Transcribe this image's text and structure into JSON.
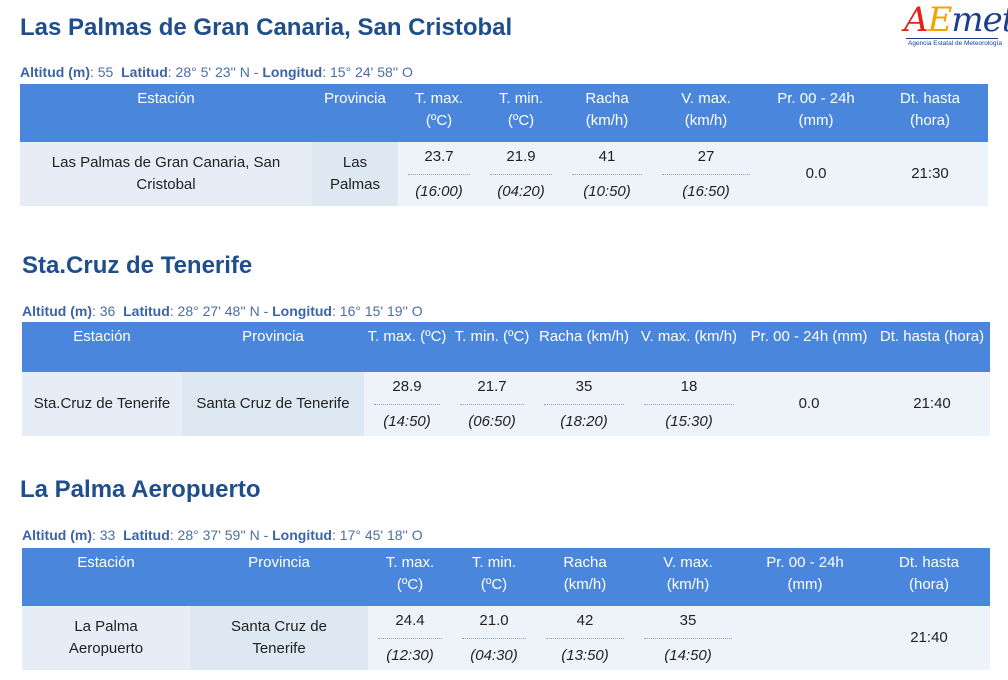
{
  "logo": {
    "a": "A",
    "e": "E",
    "met": "met",
    "subtitle": "Agencia Estatal de Meteorología"
  },
  "stations": [
    {
      "title": "Las Palmas de Gran Canaria, San Cristobal",
      "meta": {
        "alt_label": "Altitud (m)",
        "alt_value": ": 55",
        "lat_label": "Latitud",
        "lat_value": ": 28° 5' 23'' N - ",
        "lon_label": "Longitud",
        "lon_value": ": 15° 24' 58'' O"
      },
      "headers": [
        "Estación",
        "Provincia",
        "T. max.\n(ºC)",
        "T. min.\n(ºC)",
        "Racha\n(km/h)",
        "V. max.\n(km/h)",
        "Pr. 00 - 24h\n(mm)",
        "Dt. hasta\n(hora)"
      ],
      "row": {
        "estacion": "Las Palmas de Gran Canaria, San Cristobal",
        "provincia": "Las Palmas",
        "tmax": "23.7",
        "tmax_time": "(16:00)",
        "tmin": "21.9",
        "tmin_time": "(04:20)",
        "racha": "41",
        "racha_time": "(10:50)",
        "vmax": "27",
        "vmax_time": "(16:50)",
        "pr": "0.0",
        "dt": "21:30"
      }
    },
    {
      "title": "Sta.Cruz de Tenerife",
      "meta": {
        "alt_label": "Altitud (m)",
        "alt_value": ": 36",
        "lat_label": "Latitud",
        "lat_value": ": 28° 27' 48'' N - ",
        "lon_label": "Longitud",
        "lon_value": ": 16° 15' 19'' O"
      },
      "headers": [
        "Estación",
        "Provincia",
        "T. max. (ºC)",
        "T. min. (ºC)",
        "Racha (km/h)",
        "V. max. (km/h)",
        "Pr. 00 - 24h (mm)",
        "Dt. hasta (hora)"
      ],
      "row": {
        "estacion": "Sta.Cruz de Tenerife",
        "provincia": "Santa Cruz de Tenerife",
        "tmax": "28.9",
        "tmax_time": "(14:50)",
        "tmin": "21.7",
        "tmin_time": "(06:50)",
        "racha": "35",
        "racha_time": "(18:20)",
        "vmax": "18",
        "vmax_time": "(15:30)",
        "pr": "0.0",
        "dt": "21:40"
      }
    },
    {
      "title": "La Palma Aeropuerto",
      "meta": {
        "alt_label": "Altitud (m)",
        "alt_value": ": 33",
        "lat_label": "Latitud",
        "lat_value": ": 28° 37' 59'' N - ",
        "lon_label": "Longitud",
        "lon_value": ": 17° 45' 18'' O"
      },
      "headers": [
        "Estación",
        "Provincia",
        "T. max.\n(ºC)",
        "T. min.\n(ºC)",
        "Racha\n(km/h)",
        "V. max.\n(km/h)",
        "Pr. 00 - 24h\n(mm)",
        "Dt. hasta\n(hora)"
      ],
      "row": {
        "estacion": "La Palma Aeropuerto",
        "provincia": "Santa Cruz de Tenerife",
        "tmax": "24.4",
        "tmax_time": "(12:30)",
        "tmin": "21.0",
        "tmin_time": "(04:30)",
        "racha": "42",
        "racha_time": "(13:50)",
        "vmax": "35",
        "vmax_time": "(14:50)",
        "pr": "",
        "dt": "21:40"
      }
    }
  ]
}
